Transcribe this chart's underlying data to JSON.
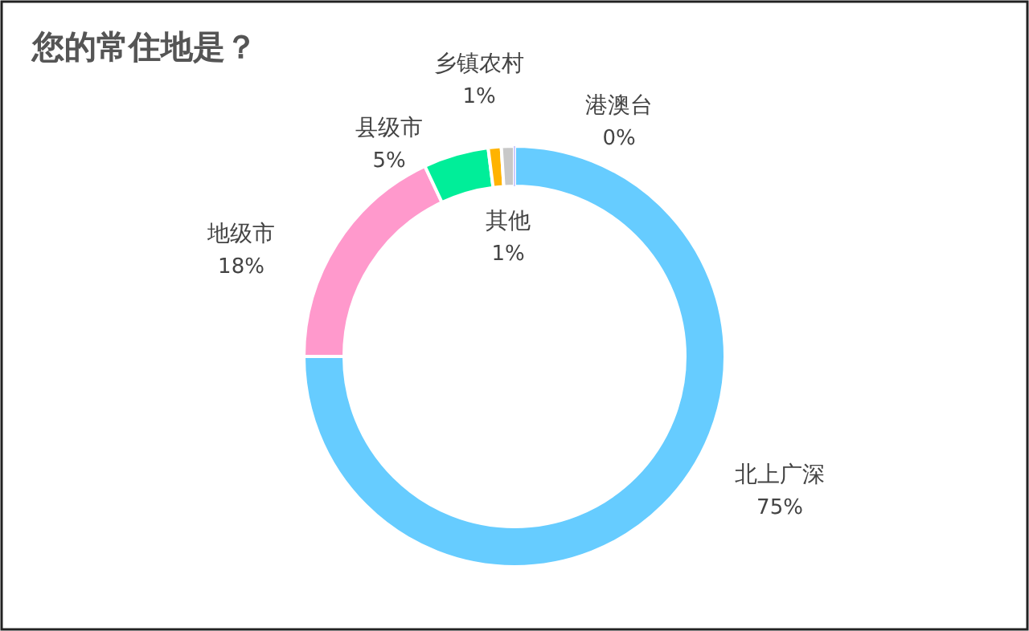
{
  "chart_data": {
    "type": "donut",
    "title": "您的常住地是？",
    "categories": [
      "北上广深",
      "地级市",
      "县级市",
      "乡镇农村",
      "其他",
      "港澳台"
    ],
    "values": [
      75,
      18,
      5,
      1,
      1,
      0
    ],
    "colors": [
      "#66ccff",
      "#ff99cc",
      "#00ee99",
      "#ffb300",
      "#c8c8c8",
      "#9999ff"
    ],
    "value_labels": [
      "75%",
      "18%",
      "5%",
      "1%",
      "1%",
      "0%"
    ]
  }
}
